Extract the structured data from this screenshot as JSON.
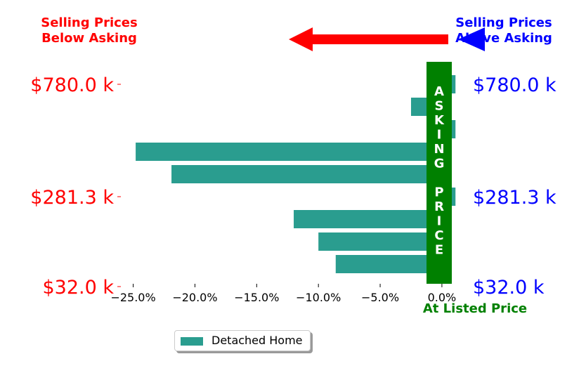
{
  "chart_data": {
    "type": "bar",
    "orientation": "horizontal",
    "x_ticks": [
      "−25.0%",
      "−20.0%",
      "−15.0%",
      "−10.0%",
      "−5.0%",
      "0.0%"
    ],
    "xlim": [
      -26.0,
      1.2
    ],
    "left_labels": [
      "$780.0 k",
      "$281.3 k",
      "$32.0 k"
    ],
    "right_labels": [
      "$780.0 k",
      "$281.3 k",
      "$32.0 k"
    ],
    "label_rows": [
      0,
      5,
      9
    ],
    "series": [
      {
        "name": "Detached Home",
        "color": "#2a9d8f",
        "values": [
          1.1,
          -2.5,
          1.1,
          -24.8,
          -21.9,
          1.1,
          -12.0,
          -10.0,
          -8.6
        ]
      }
    ],
    "title_left": [
      "Selling Prices",
      "Below Asking"
    ],
    "title_right": [
      "Selling Prices",
      "Above Asking"
    ],
    "band_letters": [
      "A",
      "S",
      "K",
      "I",
      "N",
      "G",
      "",
      "P",
      "R",
      "I",
      "C",
      "E"
    ],
    "listed_label": "At Listed Price",
    "legend_placement": "bottom-center",
    "colors": {
      "below": "#ff0000",
      "above": "#0000ff",
      "band": "#008000",
      "bar": "#2a9d8f"
    }
  }
}
